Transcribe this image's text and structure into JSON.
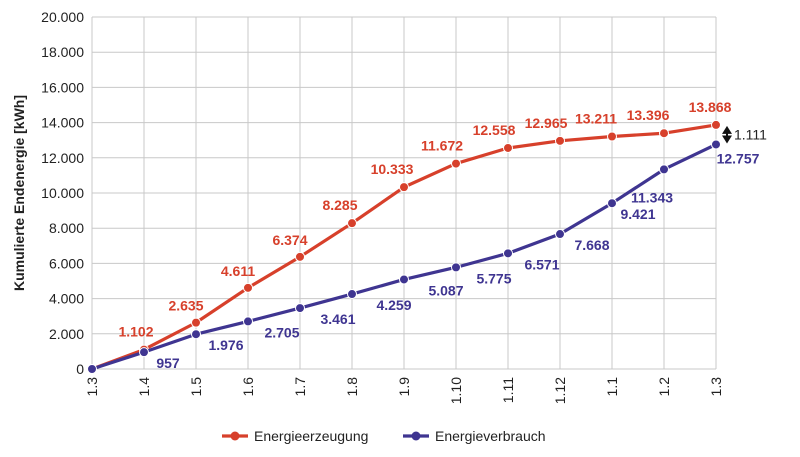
{
  "chart_data": {
    "type": "line",
    "title": "",
    "xlabel": "",
    "ylabel": "Kumulierte Endenergie [kWh]",
    "categories": [
      "1.3",
      "1.4",
      "1.5",
      "1.6",
      "1.7",
      "1.8",
      "1.9",
      "1.10",
      "1.11",
      "1.12",
      "1.1",
      "1.2",
      "1.3"
    ],
    "ylim": [
      0,
      20000
    ],
    "yticks": [
      "0",
      "2.000",
      "4.000",
      "6.000",
      "8.000",
      "10.000",
      "12.000",
      "14.000",
      "16.000",
      "18.000",
      "20.000"
    ],
    "grid": true,
    "legend_position": "bottom",
    "series": [
      {
        "name": "Energieerzeugung",
        "color": "#d7402b",
        "values": [
          0,
          1102,
          2635,
          4611,
          6374,
          8285,
          10333,
          11672,
          12558,
          12965,
          13211,
          13396,
          13868
        ],
        "labels": [
          "",
          "1.102",
          "2.635",
          "4.611",
          "6.374",
          "8.285",
          "10.333",
          "11.672",
          "12.558",
          "12.965",
          "13.211",
          "13.396",
          "13.868"
        ]
      },
      {
        "name": "Energieverbrauch",
        "color": "#3f3591",
        "values": [
          0,
          957,
          1976,
          2705,
          3461,
          4259,
          5087,
          5775,
          6571,
          7668,
          9421,
          11343,
          12757
        ],
        "labels": [
          "",
          "957",
          "1.976",
          "2.705",
          "3.461",
          "4.259",
          "5.087",
          "5.775",
          "6.571",
          "7.668",
          "9.421",
          "11.343",
          "12.757"
        ]
      }
    ],
    "annotation": {
      "text": "1.111",
      "from": 13868,
      "to": 12757
    }
  }
}
